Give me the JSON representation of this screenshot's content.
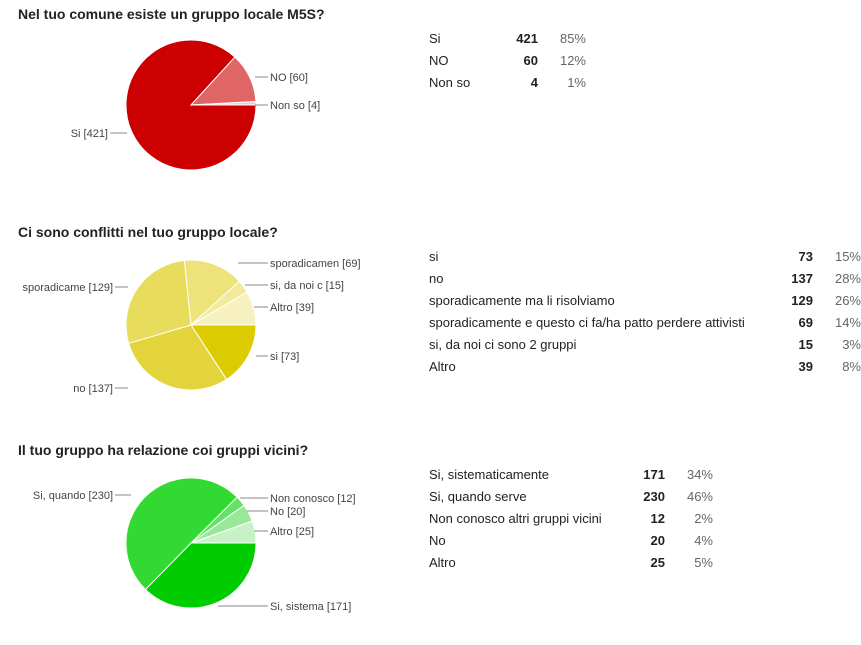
{
  "chart_data": [
    {
      "type": "pie",
      "title": "Nel tuo comune esiste un gruppo locale M5S?",
      "categories": [
        "Si",
        "NO",
        "Non so"
      ],
      "values": [
        421,
        60,
        4
      ],
      "percents": [
        "85%",
        "12%",
        "1%"
      ],
      "slice_labels": [
        "Si [421]",
        "NO [60]",
        "Non so [4]"
      ],
      "colors": [
        "#cc0000",
        "#e06666",
        "#f4cccc"
      ]
    },
    {
      "type": "pie",
      "title": "Ci sono conflitti nel tuo gruppo locale?",
      "categories": [
        "si",
        "no",
        "sporadicamente ma li risolviamo",
        "sporadicamente e questo ci fa/ha patto perdere attivisti",
        "si, da noi ci sono 2 gruppi",
        "Altro"
      ],
      "values": [
        73,
        137,
        129,
        69,
        15,
        39
      ],
      "percents": [
        "15%",
        "28%",
        "26%",
        "14%",
        "3%",
        "8%"
      ],
      "slice_labels": [
        "si [73]",
        "no [137]",
        "sporadicame [129]",
        "sporadicamen [69]",
        "si, da noi c [15]",
        "Altro [39]"
      ],
      "colors": [
        "#dccb00",
        "#e3d43b",
        "#e8dc5c",
        "#ede37a",
        "#f2ea9a",
        "#f7f1c0"
      ]
    },
    {
      "type": "pie",
      "title": "Il tuo gruppo ha relazione coi gruppi vicini?",
      "categories": [
        "Si, sistematicamente",
        "Si, quando serve",
        "Non conosco altri gruppi vicini",
        "No",
        "Altro"
      ],
      "values": [
        171,
        230,
        12,
        20,
        25
      ],
      "percents": [
        "34%",
        "46%",
        "2%",
        "4%",
        "5%"
      ],
      "slice_labels": [
        "Si, sistema [171]",
        "Si, quando  [230]",
        "Non conosco  [12]",
        "No [20]",
        "Altro [25]"
      ],
      "colors": [
        "#00cc00",
        "#33d933",
        "#66e066",
        "#99e899",
        "#c6f2c6"
      ]
    }
  ]
}
